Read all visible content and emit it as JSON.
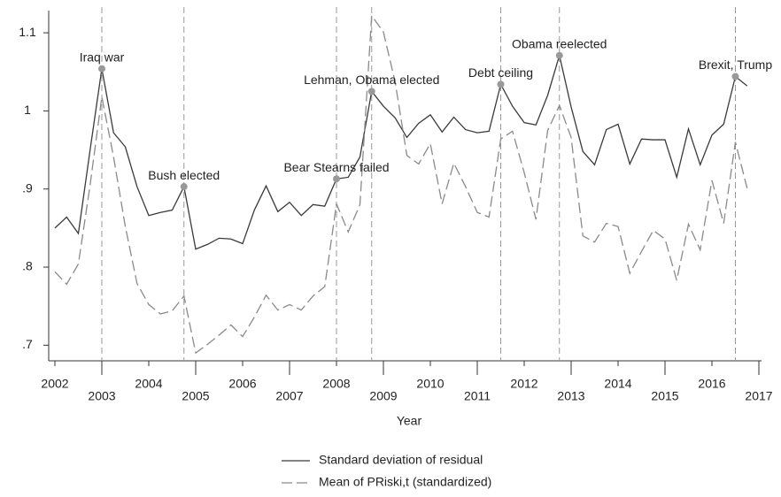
{
  "chart_data": {
    "type": "line",
    "x_label": "Year",
    "x": [
      2002,
      2002.25,
      2002.5,
      2002.75,
      2003,
      2003.25,
      2003.5,
      2003.75,
      2004,
      2004.25,
      2004.5,
      2004.75,
      2005,
      2005.25,
      2005.5,
      2005.75,
      2006,
      2006.25,
      2006.5,
      2006.75,
      2007,
      2007.25,
      2007.5,
      2007.75,
      2008,
      2008.25,
      2008.5,
      2008.75,
      2009,
      2009.25,
      2009.5,
      2009.75,
      2010,
      2010.25,
      2010.5,
      2010.75,
      2011,
      2011.25,
      2011.5,
      2011.75,
      2012,
      2012.25,
      2012.5,
      2012.75,
      2013,
      2013.25,
      2013.5,
      2013.75,
      2014,
      2014.25,
      2014.5,
      2014.75,
      2015,
      2015.25,
      2015.5,
      2015.75,
      2016,
      2016.25,
      2016.5,
      2016.75
    ],
    "series": [
      {
        "name": "Standard deviation of residual",
        "color": "#3a3a3a",
        "dash": false,
        "values": [
          0.85,
          0.864,
          0.843,
          0.95,
          1.054,
          0.972,
          0.954,
          0.903,
          0.866,
          0.87,
          0.873,
          0.903,
          0.823,
          0.829,
          0.837,
          0.836,
          0.83,
          0.873,
          0.904,
          0.871,
          0.883,
          0.866,
          0.88,
          0.878,
          0.913,
          0.915,
          0.941,
          1.025,
          1.006,
          0.991,
          0.966,
          0.984,
          0.995,
          0.973,
          0.992,
          0.976,
          0.972,
          0.974,
          1.034,
          1.006,
          0.985,
          0.982,
          1.02,
          1.071,
          1.005,
          0.948,
          0.931,
          0.976,
          0.983,
          0.932,
          0.964,
          0.963,
          0.963,
          0.915,
          0.977,
          0.931,
          0.969,
          0.983,
          1.044,
          1.032
        ]
      },
      {
        "name": "Mean of PRiski,t (standardized)",
        "color": "#8a8a8a",
        "dash": true,
        "values": [
          0.794,
          0.778,
          0.804,
          0.905,
          1.018,
          0.941,
          0.852,
          0.779,
          0.752,
          0.74,
          0.744,
          0.763,
          0.69,
          0.701,
          0.713,
          0.726,
          0.711,
          0.736,
          0.764,
          0.745,
          0.752,
          0.745,
          0.763,
          0.775,
          0.881,
          0.845,
          0.88,
          1.122,
          1.101,
          1.037,
          0.943,
          0.932,
          0.958,
          0.881,
          0.933,
          0.903,
          0.87,
          0.864,
          0.964,
          0.974,
          0.921,
          0.861,
          0.975,
          1.007,
          0.966,
          0.84,
          0.832,
          0.856,
          0.852,
          0.792,
          0.82,
          0.847,
          0.836,
          0.783,
          0.855,
          0.822,
          0.911,
          0.856,
          0.96,
          0.901
        ]
      }
    ],
    "annotations": [
      {
        "x": 2003,
        "label": "Iraq war"
      },
      {
        "x": 2004.75,
        "label": "Bush elected"
      },
      {
        "x": 2008,
        "label": "Bear Stearns failed"
      },
      {
        "x": 2008.75,
        "label": "Lehman, Obama elected"
      },
      {
        "x": 2011.5,
        "label": "Debt ceiling"
      },
      {
        "x": 2012.75,
        "label": "Obama reelected"
      },
      {
        "x": 2016.5,
        "label": "Brexit, Trump"
      }
    ],
    "xlim": [
      2002,
      2017
    ],
    "xticks": [
      2002,
      2003,
      2004,
      2005,
      2006,
      2007,
      2008,
      2009,
      2010,
      2011,
      2012,
      2013,
      2014,
      2015,
      2016,
      2017
    ],
    "ylim": [
      0.68,
      1.125
    ],
    "yticks": [
      {
        "value": 0.7,
        "label": ".7"
      },
      {
        "value": 0.8,
        "label": ".8"
      },
      {
        "value": 0.9,
        "label": ".9"
      },
      1,
      1.1
    ],
    "grid": false
  }
}
